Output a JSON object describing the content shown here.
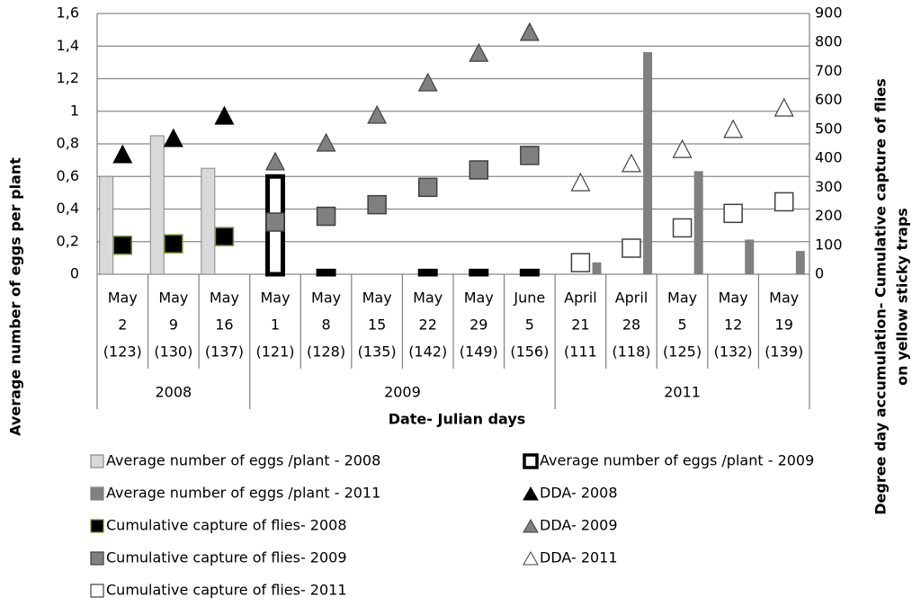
{
  "chart_data": {
    "type": "combo",
    "ylabel": "Average number of eggs per plant",
    "y2label": [
      "Degree day accumulation- Cumulative capture of flies",
      "on yellow sticky traps"
    ],
    "xlabel": "Date- Julian days",
    "categories": [
      [
        "May",
        "2",
        "(123)"
      ],
      [
        "May",
        "9",
        "(130)"
      ],
      [
        "May",
        "16",
        "(137)"
      ],
      [
        "May",
        "1",
        "(121)"
      ],
      [
        "May",
        "8",
        "(128)"
      ],
      [
        "May",
        "15",
        "(135)"
      ],
      [
        "May",
        "22",
        "(142)"
      ],
      [
        "May",
        "29",
        "(149)"
      ],
      [
        "June",
        "5",
        "(156)"
      ],
      [
        "April",
        "21",
        "(111"
      ],
      [
        "April",
        "28",
        "(118)"
      ],
      [
        "May",
        "5",
        "(125)"
      ],
      [
        "May",
        "12",
        "(132)"
      ],
      [
        "May",
        "19",
        "(139)"
      ]
    ],
    "groups": [
      "2008",
      "2009",
      "2011"
    ],
    "group_sizes": [
      3,
      6,
      5
    ],
    "ylim": [
      0,
      1.6
    ],
    "yticks": [
      0,
      {
        "value": 0.2,
        "label": "0,2"
      },
      {
        "value": 0.4,
        "label": "0,4"
      },
      {
        "value": 0.6,
        "label": "0,6"
      },
      {
        "value": 0.8,
        "label": "0,8"
      },
      1,
      {
        "value": 1.2,
        "label": "1,2"
      },
      {
        "value": 1.4,
        "label": "1,4"
      },
      {
        "value": 1.6,
        "label": "1,6"
      }
    ],
    "y2lim": [
      0,
      900
    ],
    "y2ticks": [
      0,
      100,
      200,
      300,
      400,
      500,
      600,
      700,
      800,
      900
    ],
    "grid": true,
    "series": [
      {
        "name": "Average number of eggs /plant - 2008",
        "mark": "bar",
        "fill": "#d9d9d9",
        "stroke": "#888888",
        "values": [
          0.6,
          0.85,
          0.65,
          null,
          null,
          null,
          null,
          null,
          null,
          null,
          null,
          null,
          null,
          null
        ]
      },
      {
        "name": "Average number of eggs /plant - 2009",
        "mark": "bar",
        "fill": "#ffffff",
        "stroke": "#000000",
        "values": [
          null,
          null,
          null,
          0.6,
          0.02,
          null,
          0.02,
          0.02,
          0.02,
          null,
          null,
          null,
          null,
          null
        ]
      },
      {
        "name": "Average number of eggs /plant - 2011",
        "mark": "bar",
        "fill": "#808080",
        "stroke": "#808080",
        "values": [
          null,
          null,
          null,
          null,
          null,
          null,
          null,
          null,
          null,
          0.07,
          1.36,
          0.63,
          0.21,
          0.14
        ]
      },
      {
        "name": "DDA- 2008",
        "mark": "triangle",
        "axis": "y2",
        "fill": "#000000",
        "stroke": "#000000",
        "values": [
          410,
          466,
          543,
          null,
          null,
          null,
          null,
          null,
          null,
          null,
          null,
          null,
          null,
          null
        ]
      },
      {
        "name": "Cumulative capture of flies- 2008",
        "mark": "square",
        "axis": "y2",
        "fill": "#000000",
        "stroke": "#77933c",
        "values": [
          100,
          105,
          130,
          null,
          null,
          null,
          null,
          null,
          null,
          null,
          null,
          null,
          null,
          null
        ]
      },
      {
        "name": "DDA- 2009",
        "mark": "triangle",
        "axis": "y2",
        "fill": "#808080",
        "stroke": "#404040",
        "values": [
          null,
          null,
          null,
          385,
          450,
          546,
          658,
          760,
          832,
          null,
          null,
          null,
          null,
          null
        ]
      },
      {
        "name": "Cumulative capture of flies- 2009",
        "mark": "square",
        "axis": "y2",
        "fill": "#808080",
        "stroke": "#404040",
        "values": [
          null,
          null,
          null,
          180,
          200,
          240,
          300,
          360,
          410,
          null,
          null,
          null,
          null,
          null
        ]
      },
      {
        "name": "DDA- 2011",
        "mark": "triangle",
        "axis": "y2",
        "fill": "#ffffff",
        "stroke": "#404040",
        "values": [
          null,
          null,
          null,
          null,
          null,
          null,
          null,
          null,
          null,
          313,
          379,
          428,
          497,
          571
        ]
      },
      {
        "name": "Cumulative capture of flies- 2011",
        "mark": "square",
        "axis": "y2",
        "fill": "#ffffff",
        "stroke": "#404040",
        "values": [
          null,
          null,
          null,
          null,
          null,
          null,
          null,
          null,
          null,
          40,
          90,
          160,
          210,
          250
        ]
      }
    ]
  }
}
